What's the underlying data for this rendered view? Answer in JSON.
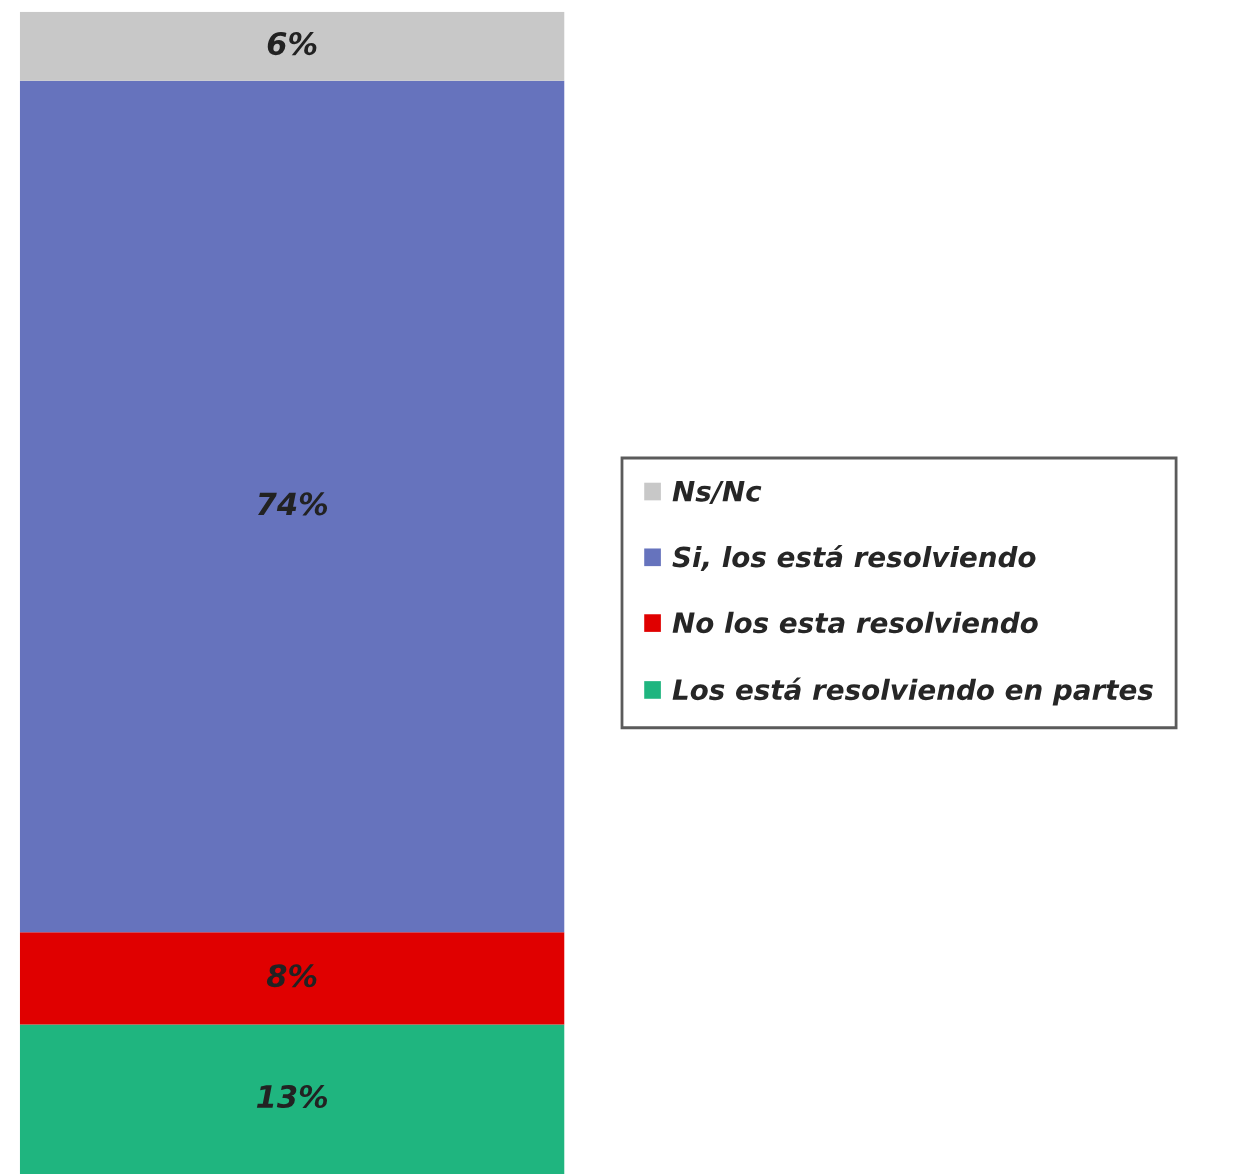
{
  "chart_data": {
    "type": "bar",
    "stacked": true,
    "categories": [
      null
    ],
    "legend": "right",
    "series": [
      {
        "name": "Los está resolviendo en partes",
        "color": "#1fb57f",
        "values": [
          13
        ],
        "value_labels": [
          "13%"
        ]
      },
      {
        "name": "No los esta resolviendo",
        "color": "#e00000",
        "values": [
          8
        ],
        "value_labels": [
          "8%"
        ]
      },
      {
        "name": "Si, los está resolviendo",
        "color": "#6673bd",
        "values": [
          74
        ],
        "value_labels": [
          "74%"
        ]
      },
      {
        "name": "Ns/Nc",
        "color": "#c8c8c8",
        "values": [
          6
        ],
        "value_labels": [
          "6%"
        ]
      }
    ]
  }
}
